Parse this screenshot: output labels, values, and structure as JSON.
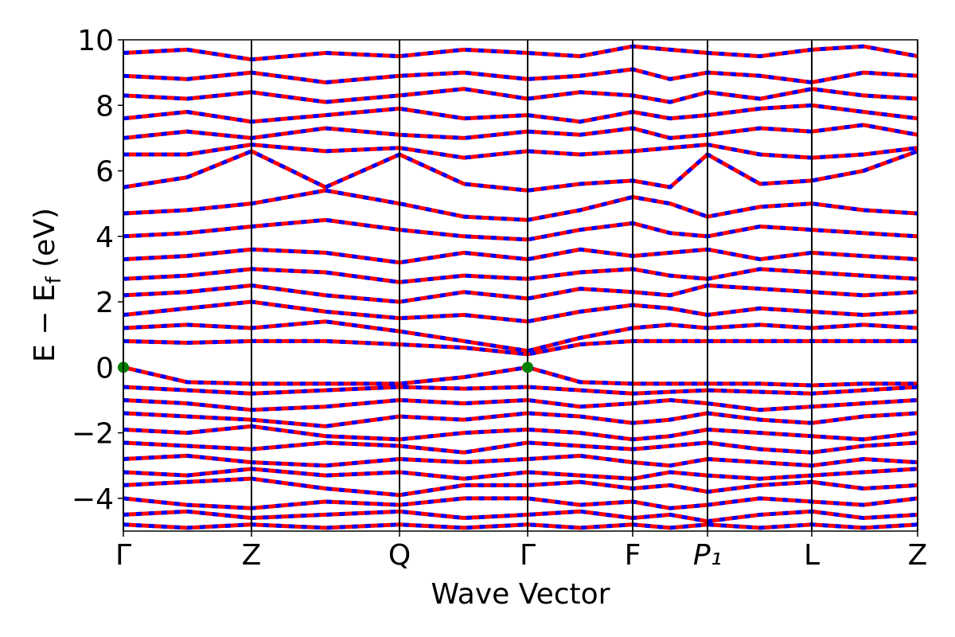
{
  "chart_data": {
    "type": "line",
    "xlabel": "Wave Vector",
    "ylabel": [
      "E − E",
      "f",
      " (eV)"
    ],
    "xlim": [
      0,
      0.998
    ],
    "xticks": [
      {
        "value": 0,
        "label": "Γ"
      },
      {
        "value": 0.161,
        "label": "Z"
      },
      {
        "value": 0.347,
        "label": "Q"
      },
      {
        "value": 0.508,
        "label": "Γ"
      },
      {
        "value": 0.64,
        "label": "F"
      },
      {
        "value": 0.734,
        "label": "P₁"
      },
      {
        "value": 0.865,
        "label": "L"
      },
      {
        "value": 0.998,
        "label": "Z"
      }
    ],
    "ylim": [
      -5,
      10
    ],
    "yticks": [
      {
        "value": -4,
        "label": "−4"
      },
      {
        "value": -2,
        "label": "−2"
      },
      0,
      2,
      4,
      6,
      8,
      10
    ],
    "colors": [
      "#ff0000",
      "#0000ff"
    ],
    "x": [
      0,
      0.08,
      0.161,
      0.254,
      0.347,
      0.428,
      0.508,
      0.574,
      0.64,
      0.687,
      0.734,
      0.8,
      0.865,
      0.93,
      0.998
    ],
    "bands": [
      [
        0,
        -0.45,
        -0.5,
        -0.5,
        -0.5,
        -0.3,
        0,
        -0.45,
        -0.5,
        -0.5,
        -0.5,
        -0.5,
        -0.55,
        -0.5,
        -0.5
      ],
      [
        -0.6,
        -0.7,
        -0.8,
        -0.7,
        -0.6,
        -0.65,
        -0.6,
        -0.7,
        -0.8,
        -0.75,
        -0.7,
        -0.75,
        -0.8,
        -0.7,
        -0.6
      ],
      [
        -1.0,
        -1.1,
        -1.3,
        -1.2,
        -1.0,
        -1.1,
        -1.0,
        -1.2,
        -1.1,
        -1.0,
        -1.1,
        -1.3,
        -1.2,
        -1.1,
        -1.0
      ],
      [
        -1.4,
        -1.5,
        -1.6,
        -1.8,
        -1.5,
        -1.6,
        -1.4,
        -1.5,
        -1.7,
        -1.6,
        -1.4,
        -1.6,
        -1.7,
        -1.5,
        -1.4
      ],
      [
        -1.9,
        -2.0,
        -1.8,
        -2.1,
        -2.2,
        -2.0,
        -1.9,
        -2.0,
        -2.2,
        -2.1,
        -1.9,
        -2.0,
        -2.1,
        -2.2,
        -2.0
      ],
      [
        -2.3,
        -2.4,
        -2.5,
        -2.3,
        -2.4,
        -2.6,
        -2.3,
        -2.4,
        -2.5,
        -2.4,
        -2.3,
        -2.5,
        -2.6,
        -2.4,
        -2.3
      ],
      [
        -2.8,
        -2.7,
        -2.9,
        -3.0,
        -2.8,
        -2.9,
        -2.8,
        -2.7,
        -2.9,
        -3.0,
        -2.8,
        -2.9,
        -3.0,
        -2.8,
        -2.9
      ],
      [
        -3.2,
        -3.3,
        -3.1,
        -3.3,
        -3.2,
        -3.4,
        -3.2,
        -3.3,
        -3.4,
        -3.2,
        -3.3,
        -3.4,
        -3.3,
        -3.2,
        -3.1
      ],
      [
        -3.6,
        -3.5,
        -3.4,
        -3.7,
        -3.9,
        -3.6,
        -3.6,
        -3.5,
        -3.7,
        -3.6,
        -3.8,
        -3.6,
        -3.5,
        -3.7,
        -3.6
      ],
      [
        -4.0,
        -4.2,
        -4.3,
        -4.1,
        -4.2,
        -4.0,
        -4.0,
        -4.2,
        -4.1,
        -4.3,
        -4.2,
        -4.0,
        -4.1,
        -4.2,
        -4.0
      ],
      [
        -4.5,
        -4.4,
        -4.6,
        -4.5,
        -4.4,
        -4.6,
        -4.5,
        -4.4,
        -4.6,
        -4.5,
        -4.7,
        -4.5,
        -4.4,
        -4.6,
        -4.5
      ],
      [
        -4.8,
        -4.9,
        -4.8,
        -4.9,
        -4.8,
        -4.9,
        -4.8,
        -4.9,
        -4.8,
        -4.9,
        -4.8,
        -4.9,
        -4.8,
        -4.9,
        -4.8
      ],
      [
        0.8,
        0.75,
        0.8,
        0.8,
        0.7,
        0.6,
        0.4,
        0.7,
        0.8,
        0.8,
        0.8,
        0.8,
        0.8,
        0.8,
        0.8
      ],
      [
        1.2,
        1.3,
        1.2,
        1.4,
        1.1,
        0.8,
        0.5,
        0.9,
        1.2,
        1.3,
        1.2,
        1.3,
        1.2,
        1.3,
        1.2
      ],
      [
        1.6,
        1.8,
        2.0,
        1.7,
        1.5,
        1.6,
        1.4,
        1.7,
        1.9,
        1.8,
        1.6,
        1.8,
        1.7,
        1.6,
        1.7
      ],
      [
        2.2,
        2.3,
        2.5,
        2.2,
        2.0,
        2.3,
        2.1,
        2.4,
        2.3,
        2.2,
        2.5,
        2.4,
        2.3,
        2.2,
        2.3
      ],
      [
        2.7,
        2.8,
        3.0,
        2.9,
        2.6,
        2.8,
        2.7,
        2.9,
        3.0,
        2.8,
        2.7,
        3.0,
        2.9,
        2.8,
        2.7
      ],
      [
        3.3,
        3.4,
        3.6,
        3.5,
        3.2,
        3.5,
        3.3,
        3.6,
        3.4,
        3.5,
        3.6,
        3.3,
        3.5,
        3.4,
        3.3
      ],
      [
        4.0,
        4.1,
        4.3,
        4.5,
        4.2,
        4.0,
        3.9,
        4.2,
        4.4,
        4.1,
        4.0,
        4.3,
        4.2,
        4.1,
        4.0
      ],
      [
        4.7,
        4.8,
        5.0,
        5.4,
        5.0,
        4.6,
        4.5,
        4.8,
        5.2,
        5.0,
        4.6,
        4.9,
        5.0,
        4.8,
        4.7
      ],
      [
        5.5,
        5.8,
        6.6,
        5.5,
        6.5,
        5.6,
        5.4,
        5.6,
        5.7,
        5.5,
        6.5,
        5.6,
        5.7,
        6.0,
        6.6
      ],
      [
        6.5,
        6.5,
        6.8,
        6.6,
        6.7,
        6.4,
        6.6,
        6.5,
        6.6,
        6.7,
        6.8,
        6.5,
        6.4,
        6.5,
        6.7
      ],
      [
        7.0,
        7.2,
        7.0,
        7.3,
        7.1,
        7.0,
        7.2,
        7.1,
        7.3,
        7.0,
        7.1,
        7.3,
        7.2,
        7.4,
        7.1
      ],
      [
        7.6,
        7.8,
        7.5,
        7.7,
        7.9,
        7.6,
        7.7,
        7.5,
        7.8,
        7.6,
        7.7,
        7.9,
        8.0,
        7.8,
        7.6
      ],
      [
        8.3,
        8.2,
        8.4,
        8.1,
        8.3,
        8.5,
        8.2,
        8.4,
        8.3,
        8.1,
        8.4,
        8.2,
        8.5,
        8.3,
        8.2
      ],
      [
        8.9,
        8.8,
        9.0,
        8.7,
        8.9,
        9.0,
        8.8,
        8.9,
        9.1,
        8.8,
        9.0,
        8.9,
        8.7,
        9.0,
        8.9
      ],
      [
        9.6,
        9.7,
        9.4,
        9.6,
        9.5,
        9.7,
        9.6,
        9.5,
        9.8,
        9.7,
        9.6,
        9.5,
        9.7,
        9.8,
        9.5
      ]
    ],
    "markers": {
      "x": [
        0,
        0.508
      ],
      "y": [
        0,
        0
      ],
      "color": "#008000"
    }
  }
}
